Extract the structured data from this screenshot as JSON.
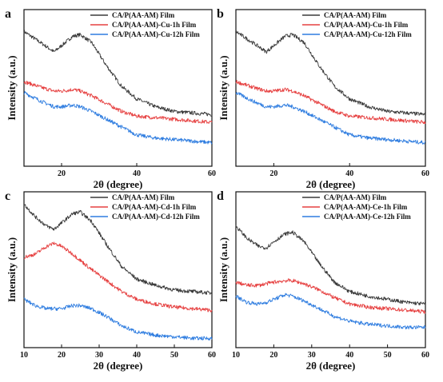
{
  "chart_data": [
    {
      "panel": "a",
      "type": "line",
      "xlabel": "2θ (degree)",
      "ylabel": "Intensity (a.u.)",
      "xlim": [
        10,
        60
      ],
      "xticks": [
        20,
        40,
        60
      ],
      "ylim": [
        0,
        100
      ],
      "legend_position": "top-right",
      "x": [
        10,
        15,
        18,
        20,
        23,
        25,
        28,
        32,
        36,
        40,
        45,
        50,
        55,
        60
      ],
      "series": [
        {
          "name": "CA/P(AA-AM) Film",
          "color": "#3a3a3a",
          "values": [
            86,
            78,
            73,
            77,
            83,
            84,
            79,
            64,
            51,
            43,
            38,
            35,
            34,
            33
          ]
        },
        {
          "name": "CA/P(AA-AM)-Cu-1h Film",
          "color": "#e64040",
          "values": [
            54,
            50,
            48,
            48,
            49,
            48,
            45,
            40,
            35,
            32,
            31,
            30,
            29,
            28
          ]
        },
        {
          "name": "CA/P(AA-AM)-Cu-12h Film",
          "color": "#2f7de0",
          "values": [
            47,
            41,
            38,
            38,
            39,
            38,
            35,
            30,
            25,
            20,
            18,
            17,
            16,
            15
          ]
        }
      ]
    },
    {
      "panel": "b",
      "type": "line",
      "xlabel": "2θ (degree)",
      "ylabel": "Intensity (a.u.)",
      "xlim": [
        10,
        60
      ],
      "xticks": [
        20,
        40,
        60
      ],
      "ylim": [
        0,
        100
      ],
      "legend_position": "top-right",
      "x": [
        10,
        15,
        18,
        20,
        23,
        25,
        28,
        32,
        36,
        40,
        45,
        50,
        55,
        60
      ],
      "series": [
        {
          "name": "CA/P(AA-AM) Film",
          "color": "#3a3a3a",
          "values": [
            86,
            78,
            73,
            77,
            83,
            84,
            79,
            64,
            51,
            43,
            38,
            35,
            34,
            33
          ]
        },
        {
          "name": "CA/P(AA-AM)-Cu-1h Film",
          "color": "#e64040",
          "values": [
            54,
            50,
            48,
            48,
            49,
            48,
            45,
            40,
            35,
            32,
            31,
            30,
            29,
            28
          ]
        },
        {
          "name": "CA/P(AA-AM)-Cu-12h Film",
          "color": "#2f7de0",
          "values": [
            47,
            41,
            38,
            38,
            39,
            38,
            35,
            30,
            25,
            20,
            18,
            17,
            16,
            15
          ]
        }
      ]
    },
    {
      "panel": "c",
      "type": "line",
      "xlabel": "2θ (degree)",
      "ylabel": "Intensity (a.u.)",
      "xlim": [
        10,
        60
      ],
      "xticks": [
        10,
        20,
        30,
        40,
        50,
        60
      ],
      "ylim": [
        0,
        100
      ],
      "legend_position": "top-right",
      "x": [
        10,
        13,
        16,
        18,
        20,
        23,
        25,
        28,
        32,
        36,
        40,
        45,
        50,
        55,
        60
      ],
      "series": [
        {
          "name": "CA/P(AA-AM) Film",
          "color": "#3a3a3a",
          "values": [
            92,
            84,
            78,
            76,
            80,
            86,
            87,
            81,
            66,
            52,
            44,
            40,
            37,
            36,
            35
          ]
        },
        {
          "name": "CA/P(AA-AM)-Cd-1h Film",
          "color": "#e64040",
          "values": [
            58,
            60,
            65,
            67,
            65,
            60,
            56,
            50,
            43,
            36,
            31,
            28,
            26,
            25,
            24
          ]
        },
        {
          "name": "CA/P(AA-AM)-Cd-12h Film",
          "color": "#2f7de0",
          "values": [
            31,
            27,
            25,
            25,
            25,
            27,
            27,
            25,
            20,
            14,
            10,
            8,
            7,
            6,
            6
          ]
        }
      ]
    },
    {
      "panel": "d",
      "type": "line",
      "xlabel": "2θ (degree)",
      "ylabel": "Intensity (a.u.)",
      "xlim": [
        10,
        60
      ],
      "xticks": [
        10,
        20,
        30,
        40,
        50,
        60
      ],
      "ylim": [
        0,
        100
      ],
      "legend_position": "top-right",
      "x": [
        10,
        13,
        16,
        18,
        20,
        23,
        25,
        28,
        32,
        36,
        40,
        45,
        50,
        55,
        60
      ],
      "series": [
        {
          "name": "CA/P(AA-AM) Film",
          "color": "#3a3a3a",
          "values": [
            78,
            70,
            65,
            64,
            68,
            73,
            74,
            68,
            54,
            42,
            36,
            33,
            31,
            29,
            28
          ]
        },
        {
          "name": "CA/P(AA-AM)-Ce-1h Film",
          "color": "#e64040",
          "values": [
            42,
            40,
            40,
            41,
            42,
            43,
            43,
            41,
            37,
            32,
            28,
            26,
            25,
            24,
            23
          ]
        },
        {
          "name": "CA/P(AA-AM)-Ce-12h Film",
          "color": "#2f7de0",
          "values": [
            33,
            29,
            28,
            29,
            31,
            34,
            33,
            30,
            25,
            20,
            17,
            15,
            14,
            13,
            13
          ]
        }
      ]
    }
  ]
}
